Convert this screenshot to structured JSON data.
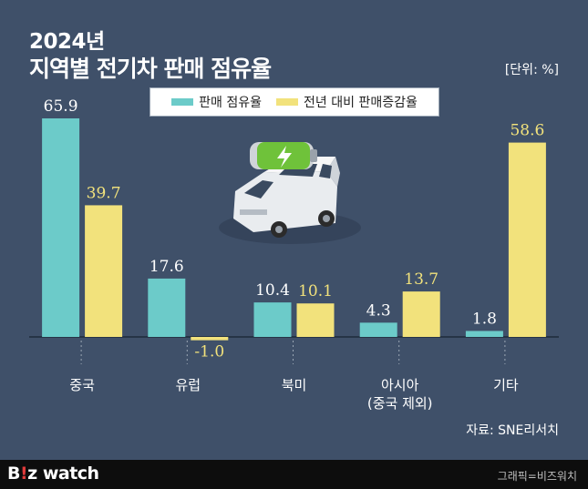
{
  "header": {
    "year": "2024년",
    "title": "지역별 전기차 판매 점유율",
    "unit": "[단위: %]"
  },
  "legend": {
    "items": [
      {
        "label": "판매 점유율",
        "color": "#6ccbc9"
      },
      {
        "label": "전년 대비 판매증감율",
        "color": "#f2e27c"
      }
    ]
  },
  "chart_data": {
    "type": "bar",
    "categories": [
      "중국",
      "유럽",
      "북미",
      "아시아\n(중국 제외)",
      "기타"
    ],
    "series": [
      {
        "name": "판매 점유율",
        "values": [
          65.9,
          17.6,
          10.4,
          4.3,
          1.8
        ],
        "color": "#6ccbc9"
      },
      {
        "name": "전년 대비 판매증감율",
        "values": [
          39.7,
          -1.0,
          10.1,
          13.7,
          58.6
        ],
        "color": "#f2e27c"
      }
    ],
    "value_labels": [
      [
        "65.9",
        "17.6",
        "10.4",
        "4.3",
        "1.8"
      ],
      [
        "39.7",
        "-1.0",
        "10.1",
        "13.7",
        "58.6"
      ]
    ],
    "ylim": [
      -5,
      70
    ],
    "grid": false,
    "legend_position": "top-center"
  },
  "source": "자료: SNE리서치",
  "footer": {
    "logo_b": "B",
    "logo_accent": "!",
    "logo_z": "z",
    "logo_rest": " watch",
    "credit": "그래픽=비즈워치"
  }
}
